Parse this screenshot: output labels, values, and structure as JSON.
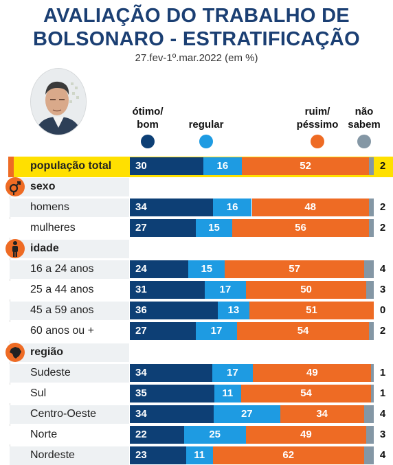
{
  "title_line1": "AVALIAÇÃO DO TRABALHO DE",
  "title_line2": "BOLSONARO - ESTRATIFICAÇÃO",
  "subtitle": "27.fev-1º.mar.2022 (em %)",
  "colors": {
    "otimo_bom": "#0d3f75",
    "regular": "#1e9be2",
    "ruim_pessimo": "#ee6b24",
    "nao_sabem": "#8497a5",
    "highlight": "#ffe000",
    "row_alt": "#eef1f3",
    "title": "#1b3f73"
  },
  "legend": [
    {
      "label": "ótimo/ bom",
      "line1": "ótimo/",
      "line2": "bom",
      "color_key": "otimo_bom"
    },
    {
      "label": "regular",
      "line1": "",
      "line2": "regular",
      "color_key": "regular"
    },
    {
      "label": "ruim/ péssimo",
      "line1": "ruim/",
      "line2": "péssimo",
      "color_key": "ruim_pessimo"
    },
    {
      "label": "não sabem",
      "line1": "não",
      "line2": "sabem",
      "color_key": "nao_sabem"
    }
  ],
  "categories": {
    "sexo": "sexo",
    "idade": "idade",
    "regiao": "região"
  },
  "chart_data": {
    "type": "bar",
    "stacked": true,
    "orientation": "horizontal",
    "title": "AVALIAÇÃO DO TRABALHO DE BOLSONARO - ESTRATIFICAÇÃO",
    "subtitle": "27.fev-1º.mar.2022 (em %)",
    "series_names": [
      "ótimo/bom",
      "regular",
      "ruim/péssimo",
      "não sabem"
    ],
    "rows": [
      {
        "label": "população total",
        "group": "",
        "values": [
          30,
          16,
          52,
          2
        ]
      },
      {
        "label": "homens",
        "group": "sexo",
        "values": [
          34,
          16,
          48,
          2
        ]
      },
      {
        "label": "mulheres",
        "group": "sexo",
        "values": [
          27,
          15,
          56,
          2
        ]
      },
      {
        "label": "16 a 24 anos",
        "group": "idade",
        "values": [
          24,
          15,
          57,
          4
        ]
      },
      {
        "label": "25 a 44 anos",
        "group": "idade",
        "values": [
          31,
          17,
          50,
          3
        ]
      },
      {
        "label": "45 a 59 anos",
        "group": "idade",
        "values": [
          36,
          13,
          51,
          0
        ]
      },
      {
        "label": "60 anos ou +",
        "group": "idade",
        "values": [
          27,
          17,
          54,
          2
        ]
      },
      {
        "label": "Sudeste",
        "group": "região",
        "values": [
          34,
          17,
          49,
          1
        ]
      },
      {
        "label": "Sul",
        "group": "região",
        "values": [
          35,
          11,
          54,
          1
        ]
      },
      {
        "label": "Centro-Oeste",
        "group": "região",
        "values": [
          34,
          27,
          34,
          4
        ]
      },
      {
        "label": "Norte",
        "group": "região",
        "values": [
          22,
          25,
          49,
          3
        ]
      },
      {
        "label": "Nordeste",
        "group": "região",
        "values": [
          23,
          11,
          62,
          4
        ]
      }
    ]
  }
}
